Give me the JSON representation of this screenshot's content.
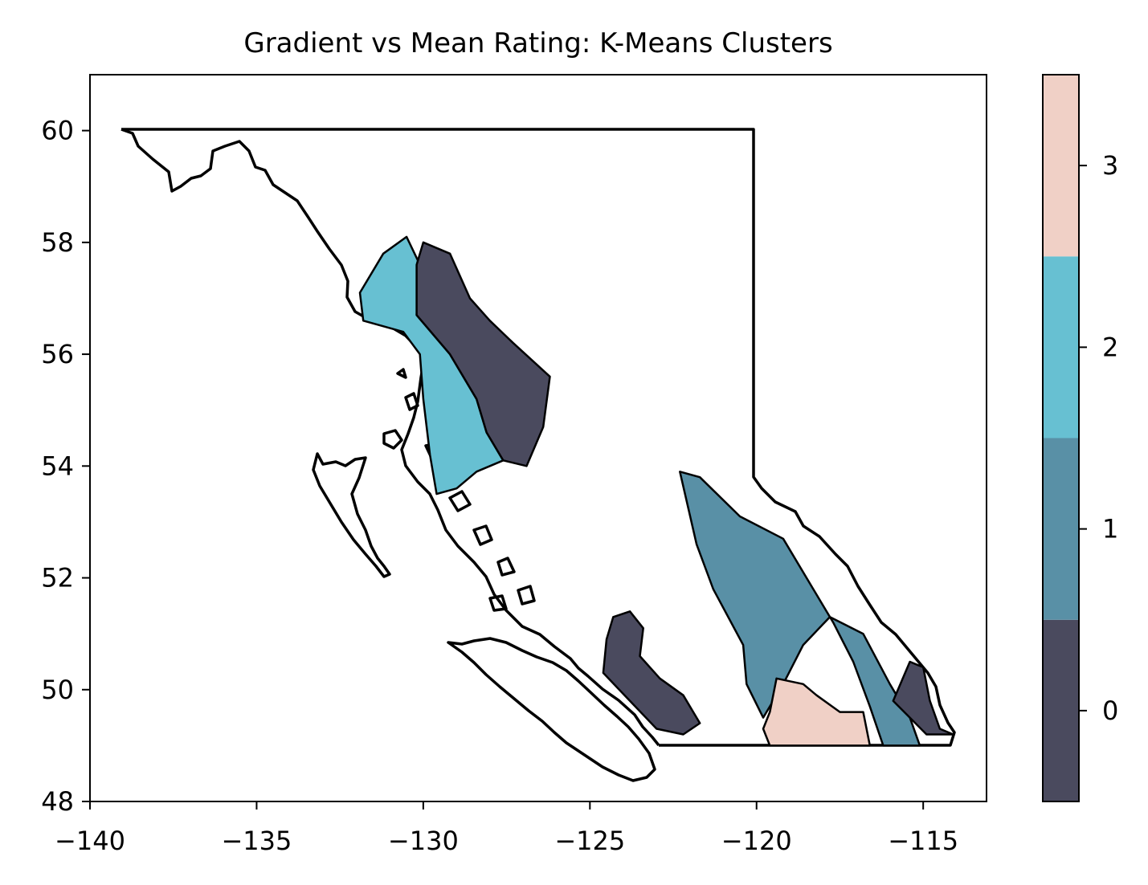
{
  "chart_data": {
    "type": "choropleth",
    "title": "Gradient vs Mean Rating: K-Means Clusters",
    "xlabel": "",
    "ylabel": "",
    "xlim": [
      -140,
      -113.1
    ],
    "ylim": [
      48,
      61
    ],
    "x_ticks": [
      -140,
      -135,
      -130,
      -125,
      -120,
      -115
    ],
    "y_ticks": [
      48,
      50,
      52,
      54,
      56,
      58,
      60
    ],
    "x_tick_labels": [
      "−140",
      "−135",
      "−130",
      "−125",
      "−120",
      "−115"
    ],
    "y_tick_labels": [
      "48",
      "50",
      "52",
      "54",
      "56",
      "58",
      "60"
    ],
    "grid": false,
    "colorbar": {
      "placement": "right",
      "classes": [
        0,
        1,
        2,
        3
      ],
      "tick_labels": [
        "0",
        "1",
        "2",
        "3"
      ],
      "colors": [
        "#4a4a5e",
        "#5990a6",
        "#67c0d2",
        "#f0d0c6"
      ]
    },
    "regions": [
      {
        "cluster": 2,
        "points": [
          [
            -131.2,
            57.8
          ],
          [
            -130.5,
            58.1
          ],
          [
            -130.1,
            57.6
          ],
          [
            -130.2,
            56.7
          ],
          [
            -129.2,
            56.0
          ],
          [
            -128.4,
            55.2
          ],
          [
            -128.1,
            54.6
          ],
          [
            -127.6,
            54.1
          ],
          [
            -128.4,
            53.9
          ],
          [
            -129.0,
            53.6
          ],
          [
            -129.6,
            53.5
          ],
          [
            -129.8,
            54.2
          ],
          [
            -130.0,
            55.2
          ],
          [
            -130.1,
            56.0
          ],
          [
            -130.6,
            56.4
          ],
          [
            -131.8,
            56.6
          ],
          [
            -131.9,
            57.1
          ]
        ]
      },
      {
        "cluster": 0,
        "points": [
          [
            -130.2,
            57.6
          ],
          [
            -130.0,
            58.0
          ],
          [
            -129.2,
            57.8
          ],
          [
            -128.6,
            57.0
          ],
          [
            -128.0,
            56.6
          ],
          [
            -127.3,
            56.2
          ],
          [
            -126.2,
            55.6
          ],
          [
            -126.4,
            54.7
          ],
          [
            -126.9,
            54.0
          ],
          [
            -127.6,
            54.1
          ],
          [
            -128.1,
            54.6
          ],
          [
            -128.4,
            55.2
          ],
          [
            -129.2,
            56.0
          ],
          [
            -130.2,
            56.7
          ]
        ]
      },
      {
        "cluster": 0,
        "points": [
          [
            -124.3,
            51.3
          ],
          [
            -123.8,
            51.4
          ],
          [
            -123.4,
            51.1
          ],
          [
            -123.5,
            50.6
          ],
          [
            -122.9,
            50.2
          ],
          [
            -122.2,
            49.9
          ],
          [
            -121.7,
            49.4
          ],
          [
            -122.2,
            49.2
          ],
          [
            -123.0,
            49.3
          ],
          [
            -123.8,
            49.8
          ],
          [
            -124.6,
            50.3
          ],
          [
            -124.5,
            50.9
          ]
        ]
      },
      {
        "cluster": 1,
        "points": [
          [
            -122.3,
            53.9
          ],
          [
            -121.7,
            53.8
          ],
          [
            -120.5,
            53.1
          ],
          [
            -119.2,
            52.7
          ],
          [
            -118.3,
            51.8
          ],
          [
            -117.7,
            51.2
          ],
          [
            -117.1,
            50.5
          ],
          [
            -116.6,
            49.7
          ],
          [
            -116.2,
            49.0
          ],
          [
            -115.1,
            49.0
          ],
          [
            -115.4,
            49.5
          ],
          [
            -116.0,
            50.1
          ],
          [
            -116.8,
            51.0
          ],
          [
            -117.8,
            51.3
          ],
          [
            -118.6,
            50.8
          ],
          [
            -119.2,
            50.1
          ],
          [
            -119.8,
            49.5
          ],
          [
            -120.3,
            50.1
          ],
          [
            -120.4,
            50.8
          ],
          [
            -121.3,
            51.8
          ],
          [
            -121.8,
            52.6
          ]
        ]
      },
      {
        "cluster": 3,
        "points": [
          [
            -119.6,
            49.0
          ],
          [
            -116.6,
            49.0
          ],
          [
            -116.8,
            49.6
          ],
          [
            -117.5,
            49.6
          ],
          [
            -118.2,
            49.9
          ],
          [
            -118.6,
            50.1
          ],
          [
            -119.4,
            50.2
          ],
          [
            -119.6,
            49.6
          ],
          [
            -119.8,
            49.3
          ]
        ]
      },
      {
        "cluster": 0,
        "points": [
          [
            -115.9,
            49.8
          ],
          [
            -115.4,
            50.5
          ],
          [
            -115.0,
            50.4
          ],
          [
            -114.8,
            49.8
          ],
          [
            -114.5,
            49.3
          ],
          [
            -114.1,
            49.2
          ],
          [
            -114.9,
            49.2
          ]
        ]
      }
    ]
  }
}
